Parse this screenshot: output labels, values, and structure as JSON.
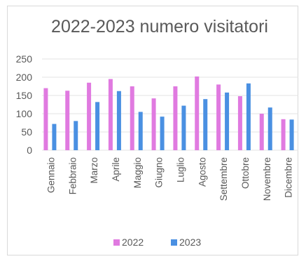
{
  "chart_data": {
    "type": "bar",
    "title": "2022-2023 numero visitatori",
    "xlabel": "",
    "ylabel": "",
    "categories": [
      "Gennaio",
      "Febbraio",
      "Marzo",
      "Aprile",
      "Maggio",
      "Giugno",
      "Luglio",
      "Agosto",
      "Settembre",
      "Ottobre",
      "Novembre",
      "Dicembre"
    ],
    "series": [
      {
        "name": "2022",
        "color": "#e07ae0",
        "values": [
          170,
          163,
          185,
          195,
          175,
          142,
          175,
          202,
          180,
          148,
          100,
          85
        ]
      },
      {
        "name": "2023",
        "color": "#4a90e2",
        "values": [
          72,
          80,
          132,
          162,
          105,
          92,
          122,
          140,
          158,
          183,
          117,
          84
        ]
      }
    ],
    "ylim": [
      0,
      250
    ],
    "yticks": [
      0,
      50,
      100,
      150,
      200,
      250
    ],
    "grid": true,
    "legend_position": "bottom"
  }
}
